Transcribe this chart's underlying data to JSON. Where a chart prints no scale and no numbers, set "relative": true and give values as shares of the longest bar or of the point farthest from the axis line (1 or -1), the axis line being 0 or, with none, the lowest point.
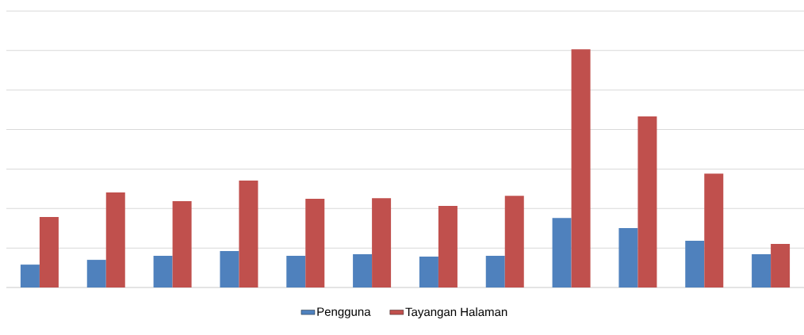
{
  "chart_data": {
    "type": "bar",
    "relative": true,
    "grid": "y",
    "legend": "bottom",
    "categories": [
      null,
      null,
      null,
      null,
      null,
      null,
      null,
      null,
      null,
      null,
      null,
      null
    ],
    "series": [
      {
        "name": "Pengguna",
        "color": "#4f81bd",
        "values": [
          0.096,
          0.116,
          0.133,
          0.153,
          0.133,
          0.14,
          0.13,
          0.133,
          0.292,
          0.249,
          0.196,
          0.14
        ]
      },
      {
        "name": "Tayangan Halaman",
        "color": "#c0504d",
        "values": [
          0.296,
          0.399,
          0.362,
          0.449,
          0.372,
          0.375,
          0.342,
          0.385,
          1,
          0.718,
          0.478,
          0.183
        ]
      }
    ]
  }
}
